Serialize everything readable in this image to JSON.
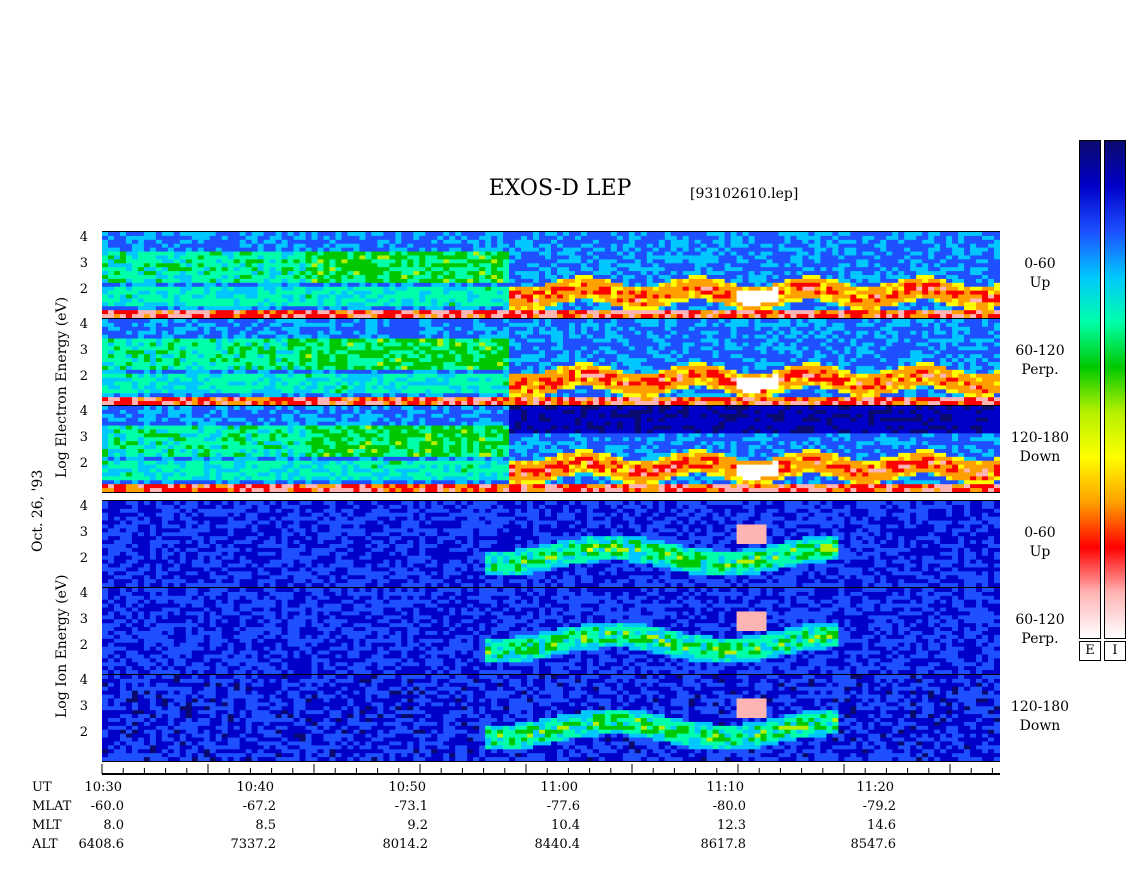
{
  "header": {
    "title": "EXOS-D LEP",
    "file": "[93102610.lep]"
  },
  "axis_labels": {
    "electron": "Log  Electron  Energy  (eV)",
    "ion": "Log   Ion   Energy   (eV)",
    "date": "Oct. 26, '93"
  },
  "colorbars": {
    "electron_label": "E",
    "ion_label": "I"
  },
  "time_table": {
    "row_labels": [
      "UT",
      "MLAT",
      "MLT",
      "ALT"
    ],
    "ut": [
      "10:30",
      "10:40",
      "10:50",
      "11:00",
      "11:10",
      "11:20"
    ],
    "mlat": [
      "-60.0",
      "-67.2",
      "-73.1",
      "-77.6",
      "-80.0",
      "-79.2"
    ],
    "mlt": [
      "8.0",
      "8.5",
      "9.2",
      "10.4",
      "12.3",
      "14.6"
    ],
    "alt": [
      "6408.6",
      "7337.2",
      "8014.2",
      "8440.4",
      "8617.8",
      "8547.6"
    ]
  },
  "chart_data": {
    "type": "heatmap",
    "title": "EXOS-D LEP",
    "x_axis": {
      "label": "UT",
      "ticks": [
        "10:30",
        "10:40",
        "10:50",
        "11:00",
        "11:10",
        "11:20"
      ],
      "range_minutes": [
        0,
        59
      ]
    },
    "y_axis": {
      "label": "Log Energy (eV)",
      "ticks": [
        "2",
        "3",
        "4"
      ],
      "range": [
        1,
        4.3
      ]
    },
    "panels": [
      {
        "species": "Electron",
        "pitch_angle": "0-60",
        "direction": "Up"
      },
      {
        "species": "Electron",
        "pitch_angle": "60-120",
        "direction": "Perp."
      },
      {
        "species": "Electron",
        "pitch_angle": "120-180",
        "direction": "Down"
      },
      {
        "species": "Ion",
        "pitch_angle": "0-60",
        "direction": "Up"
      },
      {
        "species": "Ion",
        "pitch_angle": "60-120",
        "direction": "Perp."
      },
      {
        "species": "Ion",
        "pitch_angle": "120-180",
        "direction": "Down"
      }
    ],
    "colorscale": [
      "#0a0a6e",
      "#0000c8",
      "#1e50ff",
      "#00c8ff",
      "#00ffaa",
      "#00c800",
      "#b4f000",
      "#ffff00",
      "#ffa000",
      "#ff0000",
      "#ffb4b4",
      "#ffffff"
    ]
  }
}
